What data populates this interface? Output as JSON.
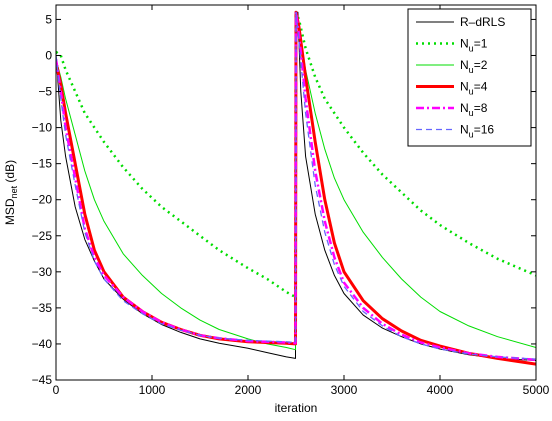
{
  "chart_data": {
    "type": "line",
    "xlabel": "iteration",
    "ylabel_main": "MSD",
    "ylabel_sub": "net",
    "ylabel_suffix": " (dB)",
    "xlim": [
      0,
      5000
    ],
    "ylim": [
      -45,
      7
    ],
    "xticks": [
      0,
      1000,
      2000,
      3000,
      4000,
      5000
    ],
    "yticks": [
      5,
      0,
      -5,
      -10,
      -15,
      -20,
      -25,
      -30,
      -35,
      -40,
      -45
    ],
    "grid": false,
    "legend_position": "top-right",
    "series": [
      {
        "name_main": "R–dRLS",
        "name_sub": "",
        "name_suffix": "",
        "color": "#000000",
        "dash": "",
        "width": 1,
        "points": [
          [
            0,
            0
          ],
          [
            50,
            -9
          ],
          [
            100,
            -14
          ],
          [
            200,
            -21
          ],
          [
            300,
            -25.5
          ],
          [
            400,
            -28.5
          ],
          [
            500,
            -31
          ],
          [
            700,
            -33.8
          ],
          [
            900,
            -35.8
          ],
          [
            1100,
            -37.3
          ],
          [
            1300,
            -38.4
          ],
          [
            1500,
            -39.3
          ],
          [
            1700,
            -39.9
          ],
          [
            2000,
            -40.6
          ],
          [
            2200,
            -41.2
          ],
          [
            2400,
            -41.8
          ],
          [
            2495,
            -42
          ],
          [
            2500,
            6
          ],
          [
            2520,
            6
          ],
          [
            2550,
            -5
          ],
          [
            2600,
            -14
          ],
          [
            2700,
            -22
          ],
          [
            2800,
            -27
          ],
          [
            2900,
            -30.5
          ],
          [
            3000,
            -33
          ],
          [
            3200,
            -36
          ],
          [
            3400,
            -37.8
          ],
          [
            3600,
            -39
          ],
          [
            3800,
            -40
          ],
          [
            4000,
            -40.7
          ],
          [
            4300,
            -41.5
          ],
          [
            4600,
            -42
          ],
          [
            5000,
            -42.3
          ]
        ]
      },
      {
        "name_main": "N",
        "name_sub": "u",
        "name_suffix": "=1",
        "color": "#00dd00",
        "dash": "2,4",
        "width": 2.5,
        "points": [
          [
            0,
            0.5
          ],
          [
            50,
            0
          ],
          [
            100,
            -2
          ],
          [
            200,
            -5
          ],
          [
            300,
            -8
          ],
          [
            400,
            -10
          ],
          [
            500,
            -12
          ],
          [
            700,
            -15.5
          ],
          [
            900,
            -18.5
          ],
          [
            1100,
            -21
          ],
          [
            1300,
            -23
          ],
          [
            1500,
            -25
          ],
          [
            1700,
            -27
          ],
          [
            2000,
            -29.5
          ],
          [
            2200,
            -31
          ],
          [
            2400,
            -32.8
          ],
          [
            2495,
            -33.5
          ],
          [
            2500,
            6
          ],
          [
            2530,
            5
          ],
          [
            2600,
            1
          ],
          [
            2700,
            -3
          ],
          [
            2800,
            -6
          ],
          [
            3000,
            -10
          ],
          [
            3200,
            -13.5
          ],
          [
            3400,
            -16.5
          ],
          [
            3600,
            -19
          ],
          [
            3800,
            -21.5
          ],
          [
            4000,
            -23.5
          ],
          [
            4300,
            -26
          ],
          [
            4600,
            -28.2
          ],
          [
            5000,
            -30.5
          ]
        ]
      },
      {
        "name_main": "N",
        "name_sub": "u",
        "name_suffix": "=2",
        "color": "#00dd00",
        "dash": "",
        "width": 1,
        "points": [
          [
            0,
            -0.5
          ],
          [
            50,
            -3
          ],
          [
            100,
            -6
          ],
          [
            200,
            -11
          ],
          [
            300,
            -16
          ],
          [
            400,
            -20
          ],
          [
            500,
            -23
          ],
          [
            700,
            -27.5
          ],
          [
            900,
            -30.5
          ],
          [
            1100,
            -33
          ],
          [
            1300,
            -35
          ],
          [
            1500,
            -36.7
          ],
          [
            1700,
            -38
          ],
          [
            2000,
            -39.3
          ],
          [
            2200,
            -40
          ],
          [
            2400,
            -40.5
          ],
          [
            2495,
            -40.8
          ],
          [
            2500,
            6
          ],
          [
            2530,
            4
          ],
          [
            2600,
            -2
          ],
          [
            2700,
            -8
          ],
          [
            2800,
            -13
          ],
          [
            2900,
            -17
          ],
          [
            3000,
            -20
          ],
          [
            3200,
            -24.5
          ],
          [
            3400,
            -28
          ],
          [
            3600,
            -31
          ],
          [
            3800,
            -33.5
          ],
          [
            4000,
            -35.5
          ],
          [
            4300,
            -37.5
          ],
          [
            4600,
            -39
          ],
          [
            5000,
            -40.5
          ]
        ]
      },
      {
        "name_main": "N",
        "name_sub": "u",
        "name_suffix": "=4",
        "color": "#ff0000",
        "dash": "",
        "width": 3,
        "points": [
          [
            0,
            -1
          ],
          [
            50,
            -4
          ],
          [
            100,
            -8
          ],
          [
            200,
            -15
          ],
          [
            300,
            -22
          ],
          [
            400,
            -27
          ],
          [
            500,
            -30
          ],
          [
            700,
            -33.5
          ],
          [
            900,
            -35.5
          ],
          [
            1100,
            -37
          ],
          [
            1300,
            -38
          ],
          [
            1500,
            -38.8
          ],
          [
            1700,
            -39.3
          ],
          [
            2000,
            -39.7
          ],
          [
            2200,
            -39.8
          ],
          [
            2400,
            -39.9
          ],
          [
            2495,
            -40
          ],
          [
            2500,
            6
          ],
          [
            2530,
            4
          ],
          [
            2600,
            -3
          ],
          [
            2700,
            -12
          ],
          [
            2800,
            -20
          ],
          [
            2900,
            -26
          ],
          [
            3000,
            -30
          ],
          [
            3200,
            -34
          ],
          [
            3400,
            -36.5
          ],
          [
            3600,
            -38.2
          ],
          [
            3800,
            -39.5
          ],
          [
            4000,
            -40.3
          ],
          [
            4300,
            -41.3
          ],
          [
            4600,
            -42
          ],
          [
            5000,
            -42.8
          ]
        ]
      },
      {
        "name_main": "N",
        "name_sub": "u",
        "name_suffix": "=8",
        "color": "#ff00ff",
        "dash": "8,3,2,3",
        "width": 2.5,
        "points": [
          [
            0,
            -0.5
          ],
          [
            50,
            -5
          ],
          [
            100,
            -10
          ],
          [
            200,
            -17
          ],
          [
            300,
            -24
          ],
          [
            400,
            -28
          ],
          [
            500,
            -30.5
          ],
          [
            700,
            -33.5
          ],
          [
            900,
            -35.5
          ],
          [
            1100,
            -37
          ],
          [
            1300,
            -38
          ],
          [
            1500,
            -38.8
          ],
          [
            1700,
            -39.2
          ],
          [
            2000,
            -39.6
          ],
          [
            2200,
            -39.7
          ],
          [
            2400,
            -39.8
          ],
          [
            2495,
            -39.9
          ],
          [
            2500,
            6
          ],
          [
            2530,
            3
          ],
          [
            2600,
            -6
          ],
          [
            2700,
            -16
          ],
          [
            2800,
            -23
          ],
          [
            2900,
            -28
          ],
          [
            3000,
            -31.5
          ],
          [
            3200,
            -35
          ],
          [
            3400,
            -37.2
          ],
          [
            3600,
            -38.7
          ],
          [
            3800,
            -39.8
          ],
          [
            4000,
            -40.5
          ],
          [
            4300,
            -41.3
          ],
          [
            4600,
            -41.8
          ],
          [
            5000,
            -42.2
          ]
        ]
      },
      {
        "name_main": "N",
        "name_sub": "u",
        "name_suffix": "=16",
        "color": "#6666ff",
        "dash": "6,4",
        "width": 1.3,
        "points": [
          [
            0,
            0
          ],
          [
            50,
            -6
          ],
          [
            100,
            -11
          ],
          [
            200,
            -18
          ],
          [
            300,
            -24.5
          ],
          [
            400,
            -28.5
          ],
          [
            500,
            -31
          ],
          [
            700,
            -34
          ],
          [
            900,
            -35.8
          ],
          [
            1100,
            -37.2
          ],
          [
            1300,
            -38.1
          ],
          [
            1500,
            -38.8
          ],
          [
            1700,
            -39.2
          ],
          [
            2000,
            -39.5
          ],
          [
            2200,
            -39.6
          ],
          [
            2400,
            -39.7
          ],
          [
            2495,
            -39.8
          ],
          [
            2500,
            6
          ],
          [
            2530,
            2
          ],
          [
            2600,
            -8
          ],
          [
            2700,
            -18
          ],
          [
            2800,
            -24.5
          ],
          [
            2900,
            -29
          ],
          [
            3000,
            -32
          ],
          [
            3200,
            -35.5
          ],
          [
            3400,
            -37.5
          ],
          [
            3600,
            -39
          ],
          [
            3800,
            -40
          ],
          [
            4000,
            -40.7
          ],
          [
            4300,
            -41.4
          ],
          [
            4600,
            -41.8
          ],
          [
            5000,
            -42.1
          ]
        ]
      }
    ]
  }
}
